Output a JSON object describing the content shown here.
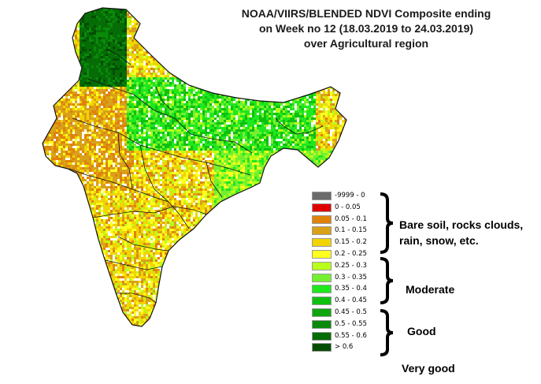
{
  "title": {
    "line1": "NOAA/VIIRS/BLENDED NDVI Composite ending",
    "line2": "on Week no 12 (18.03.2019 to 24.03.2019)",
    "line3": "over Agricultural region"
  },
  "legend": [
    {
      "label": "-9999 - 0",
      "color": "#6b6b6b"
    },
    {
      "label": "0 - 0.05",
      "color": "#e00000"
    },
    {
      "label": "0.05 - 0.1",
      "color": "#e0820a"
    },
    {
      "label": "0.1 - 0.15",
      "color": "#d9a11a"
    },
    {
      "label": "0.15 - 0.2",
      "color": "#f2d400"
    },
    {
      "label": "0.2 - 0.25",
      "color": "#ffff20"
    },
    {
      "label": "0.25 - 0.3",
      "color": "#b8ff1a"
    },
    {
      "label": "0.3 - 0.35",
      "color": "#74f030"
    },
    {
      "label": "0.35 - 0.4",
      "color": "#1ee81e"
    },
    {
      "label": "0.4 - 0.45",
      "color": "#10c010"
    },
    {
      "label": "0.45 - 0.5",
      "color": "#0ea50e"
    },
    {
      "label": "0.5 - 0.55",
      "color": "#0a8a0a"
    },
    {
      "label": "0.55 - 0.6",
      "color": "#066c06"
    },
    {
      "label": "> 0.6",
      "color": "#034d03"
    }
  ],
  "categories": {
    "bare": "Bare soil, rocks clouds,",
    "bare_line2": "rain, snow, etc.",
    "moderate": "Moderate",
    "good": "Good",
    "very_good": "Very good"
  },
  "colors": {
    "outline": "#111111",
    "background": "#ffffff"
  }
}
